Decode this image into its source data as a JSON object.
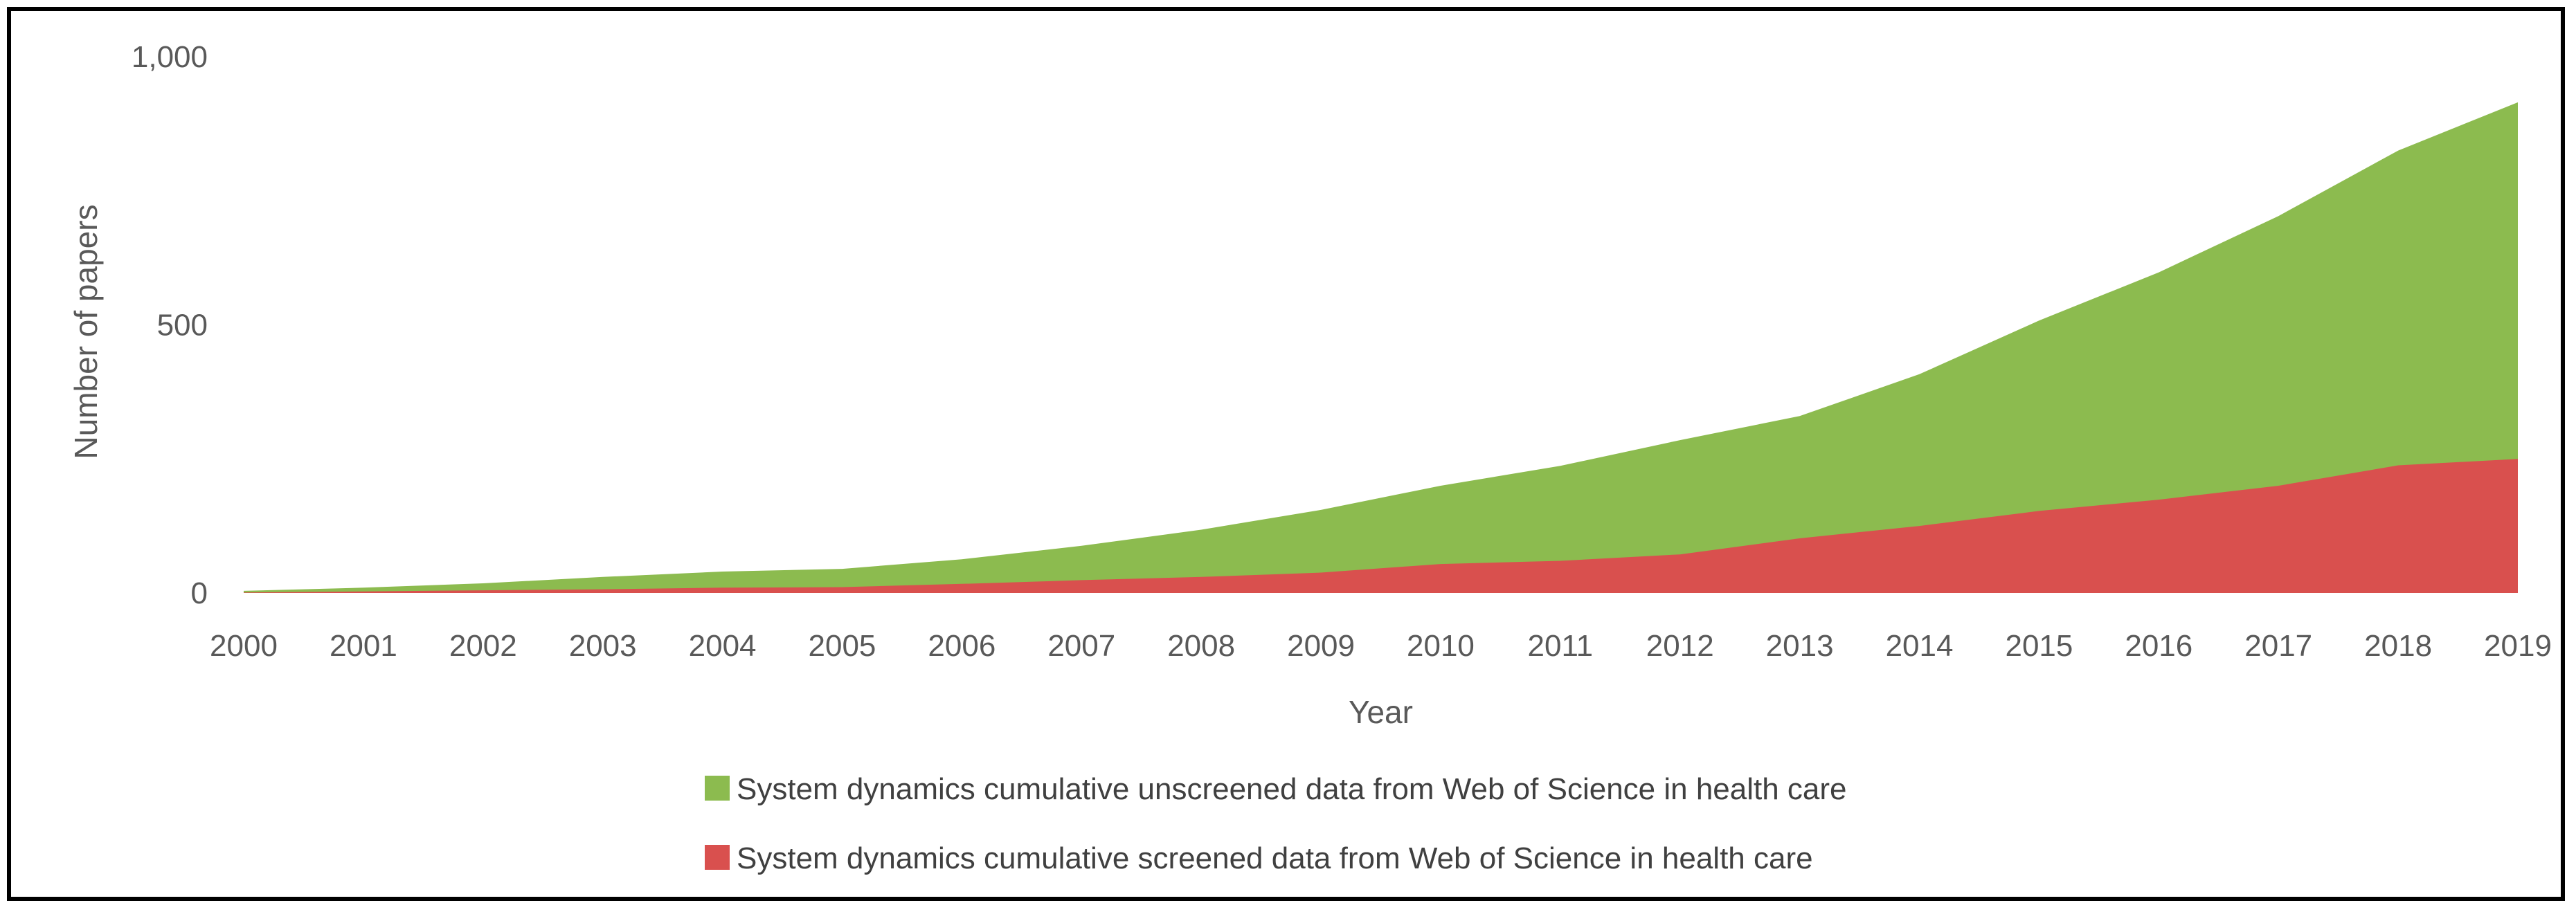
{
  "chart_data": {
    "type": "area",
    "stacking": "overlapping",
    "title": "",
    "xlabel": "Year",
    "ylabel": "Number of papers",
    "categories": [
      "2000",
      "2001",
      "2002",
      "2003",
      "2004",
      "2005",
      "2006",
      "2007",
      "2008",
      "2009",
      "2010",
      "2011",
      "2012",
      "2013",
      "2014",
      "2015",
      "2016",
      "2017",
      "2018",
      "2019"
    ],
    "ylim": [
      0,
      1000
    ],
    "yticks": [
      0,
      500,
      1000
    ],
    "ytick_labels": [
      "0",
      "500",
      "1,000"
    ],
    "grid": false,
    "legend_position": "bottom",
    "series": [
      {
        "name": "System dynamics cumulative unscreened data from Web of Science in health care",
        "color": "#8cbb4f",
        "values": [
          4,
          10,
          18,
          30,
          40,
          45,
          63,
          88,
          118,
          155,
          200,
          237,
          285,
          330,
          408,
          508,
          598,
          703,
          825,
          915
        ]
      },
      {
        "name": "System dynamics cumulative screened data from Web of Science in health care",
        "color": "#d9504e",
        "values": [
          1,
          3,
          5,
          7,
          10,
          11,
          17,
          24,
          30,
          38,
          54,
          60,
          72,
          102,
          125,
          153,
          174,
          200,
          238,
          250
        ]
      }
    ]
  }
}
